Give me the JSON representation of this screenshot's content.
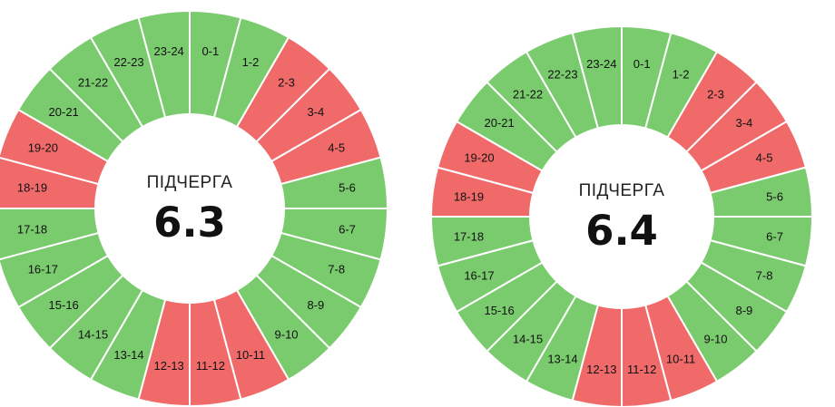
{
  "colors": {
    "on": "#7acb6e",
    "off": "#f06a6a",
    "divider": "#ffffff",
    "center": "#ffffff"
  },
  "wheels": [
    {
      "label": "ПІДЧЕРГА",
      "value": "6.3",
      "segments": [
        {
          "label": "0-1",
          "state": "on"
        },
        {
          "label": "1-2",
          "state": "on"
        },
        {
          "label": "2-3",
          "state": "off"
        },
        {
          "label": "3-4",
          "state": "off"
        },
        {
          "label": "4-5",
          "state": "off"
        },
        {
          "label": "5-6",
          "state": "on"
        },
        {
          "label": "6-7",
          "state": "on"
        },
        {
          "label": "7-8",
          "state": "on"
        },
        {
          "label": "8-9",
          "state": "on"
        },
        {
          "label": "9-10",
          "state": "on"
        },
        {
          "label": "10-11",
          "state": "off"
        },
        {
          "label": "11-12",
          "state": "off"
        },
        {
          "label": "12-13",
          "state": "off"
        },
        {
          "label": "13-14",
          "state": "on"
        },
        {
          "label": "14-15",
          "state": "on"
        },
        {
          "label": "15-16",
          "state": "on"
        },
        {
          "label": "16-17",
          "state": "on"
        },
        {
          "label": "17-18",
          "state": "on"
        },
        {
          "label": "18-19",
          "state": "off"
        },
        {
          "label": "19-20",
          "state": "off"
        },
        {
          "label": "20-21",
          "state": "on"
        },
        {
          "label": "21-22",
          "state": "on"
        },
        {
          "label": "22-23",
          "state": "on"
        },
        {
          "label": "23-24",
          "state": "on"
        }
      ]
    },
    {
      "label": "ПІДЧЕРГА",
      "value": "6.4",
      "segments": [
        {
          "label": "0-1",
          "state": "on"
        },
        {
          "label": "1-2",
          "state": "on"
        },
        {
          "label": "2-3",
          "state": "off"
        },
        {
          "label": "3-4",
          "state": "off"
        },
        {
          "label": "4-5",
          "state": "off"
        },
        {
          "label": "5-6",
          "state": "on"
        },
        {
          "label": "6-7",
          "state": "on"
        },
        {
          "label": "7-8",
          "state": "on"
        },
        {
          "label": "8-9",
          "state": "on"
        },
        {
          "label": "9-10",
          "state": "on"
        },
        {
          "label": "10-11",
          "state": "off"
        },
        {
          "label": "11-12",
          "state": "off"
        },
        {
          "label": "12-13",
          "state": "off"
        },
        {
          "label": "13-14",
          "state": "on"
        },
        {
          "label": "14-15",
          "state": "on"
        },
        {
          "label": "15-16",
          "state": "on"
        },
        {
          "label": "16-17",
          "state": "on"
        },
        {
          "label": "17-18",
          "state": "on"
        },
        {
          "label": "18-19",
          "state": "off"
        },
        {
          "label": "19-20",
          "state": "off"
        },
        {
          "label": "20-21",
          "state": "on"
        },
        {
          "label": "21-22",
          "state": "on"
        },
        {
          "label": "22-23",
          "state": "on"
        },
        {
          "label": "23-24",
          "state": "on"
        }
      ]
    }
  ]
}
